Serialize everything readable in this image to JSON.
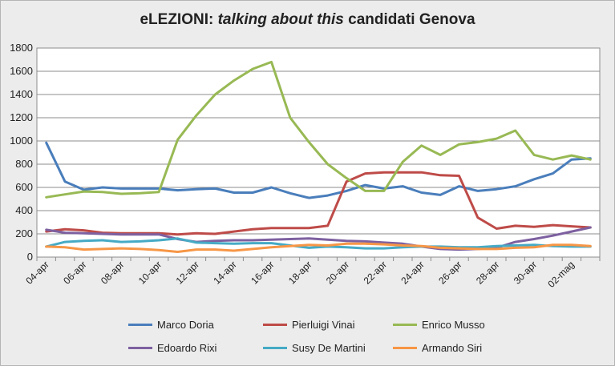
{
  "chart_data": {
    "type": "line",
    "title_prefix": "eLEZIONI: ",
    "title_italic": "talking about this",
    "title_suffix": " candidati Genova",
    "xlabel": "",
    "ylabel": "",
    "ylim": [
      0,
      1800
    ],
    "yticks": [
      0,
      200,
      400,
      600,
      800,
      1000,
      1200,
      1400,
      1600,
      1800
    ],
    "grid": true,
    "legend_position": "bottom",
    "x": [
      "04-apr",
      "05-apr",
      "06-apr",
      "07-apr",
      "08-apr",
      "09-apr",
      "10-apr",
      "11-apr",
      "12-apr",
      "13-apr",
      "14-apr",
      "15-apr",
      "16-apr",
      "17-apr",
      "18-apr",
      "19-apr",
      "20-apr",
      "21-apr",
      "22-apr",
      "23-apr",
      "24-apr",
      "25-apr",
      "26-apr",
      "27-apr",
      "28-apr",
      "29-apr",
      "30-apr",
      "01-mag",
      "02-mag",
      "03-mag"
    ],
    "xtick_labels": [
      "04-apr",
      "06-apr",
      "08-apr",
      "10-apr",
      "12-apr",
      "14-apr",
      "16-apr",
      "18-apr",
      "20-apr",
      "22-apr",
      "24-apr",
      "26-apr",
      "28-apr",
      "30-apr",
      "02-mag"
    ],
    "series": [
      {
        "name": "Marco Doria",
        "color": "#4a7ebb",
        "values": [
          985,
          650,
          580,
          600,
          590,
          590,
          590,
          575,
          585,
          590,
          555,
          555,
          600,
          550,
          510,
          530,
          570,
          620,
          590,
          610,
          555,
          535,
          610,
          570,
          585,
          610,
          670,
          720,
          840,
          850
        ]
      },
      {
        "name": "Pierluigi Vinai",
        "color": "#be4b48",
        "values": [
          220,
          240,
          230,
          210,
          205,
          205,
          205,
          195,
          205,
          200,
          220,
          240,
          250,
          250,
          250,
          270,
          650,
          720,
          730,
          730,
          730,
          705,
          700,
          340,
          245,
          270,
          260,
          275,
          265,
          255
        ]
      },
      {
        "name": "Enrico Musso",
        "color": "#98b954",
        "values": [
          515,
          540,
          565,
          560,
          545,
          550,
          560,
          1010,
          1220,
          1400,
          1520,
          1620,
          1680,
          1200,
          990,
          800,
          680,
          570,
          570,
          820,
          960,
          880,
          970,
          990,
          1020,
          1090,
          880,
          840,
          875,
          840
        ]
      },
      {
        "name": "Edoardo Rixi",
        "color": "#7d60a0",
        "values": [
          235,
          210,
          205,
          200,
          195,
          195,
          195,
          155,
          130,
          140,
          145,
          145,
          150,
          155,
          160,
          150,
          140,
          135,
          125,
          115,
          90,
          70,
          65,
          70,
          80,
          130,
          155,
          185,
          220,
          255
        ]
      },
      {
        "name": "Susy De Martini",
        "color": "#46aac5",
        "values": [
          90,
          130,
          140,
          145,
          130,
          135,
          145,
          160,
          125,
          120,
          115,
          120,
          120,
          100,
          80,
          90,
          85,
          75,
          75,
          85,
          90,
          90,
          85,
          85,
          95,
          100,
          105,
          95,
          90,
          90
        ]
      },
      {
        "name": "Armando Siri",
        "color": "#f79646",
        "values": [
          90,
          85,
          65,
          70,
          75,
          70,
          60,
          45,
          65,
          65,
          55,
          70,
          85,
          95,
          105,
          100,
          115,
          115,
          110,
          100,
          95,
          80,
          75,
          70,
          70,
          80,
          85,
          105,
          105,
          95
        ]
      }
    ]
  }
}
